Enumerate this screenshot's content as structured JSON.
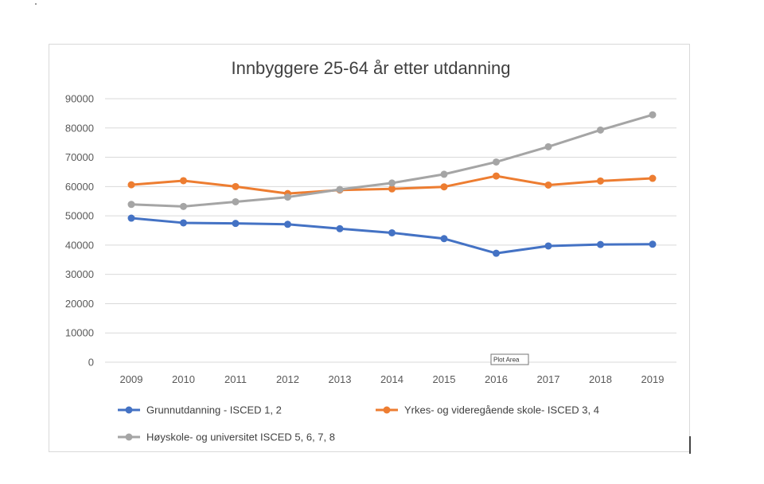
{
  "chart_data": {
    "type": "line",
    "title": "Innbyggere 25-64 år etter utdanning",
    "xlabel": "",
    "ylabel": "",
    "categories": [
      "2009",
      "2010",
      "2011",
      "2012",
      "2013",
      "2014",
      "2015",
      "2016",
      "2017",
      "2018",
      "2019"
    ],
    "y_ticks": [
      "0",
      "10000",
      "20000",
      "30000",
      "40000",
      "50000",
      "60000",
      "70000",
      "80000",
      "90000"
    ],
    "ylim": [
      0,
      90000
    ],
    "grid": true,
    "legend_position": "bottom",
    "series": [
      {
        "name": "Grunnutdanning - ISCED 1, 2",
        "color": "#4472c4",
        "values": [
          49200,
          47600,
          47400,
          47100,
          45600,
          44200,
          42200,
          37200,
          39700,
          40200,
          40300
        ]
      },
      {
        "name": "Yrkes- og videregående skole- ISCED 3, 4",
        "color": "#ed7d31",
        "values": [
          60600,
          62000,
          60000,
          57600,
          58800,
          59200,
          59900,
          63600,
          60500,
          61900,
          62800
        ]
      },
      {
        "name": "Høyskole- og universitet ISCED 5, 6, 7, 8",
        "color": "#a5a5a5",
        "values": [
          53900,
          53200,
          54800,
          56400,
          59000,
          61200,
          64200,
          68400,
          73600,
          79300,
          84500
        ]
      }
    ]
  },
  "tooltip": {
    "label": "Plot Area"
  },
  "colors": {
    "gridline": "#d9d9d9",
    "axis_text": "#595959",
    "frame_border": "#d9d9d9"
  }
}
